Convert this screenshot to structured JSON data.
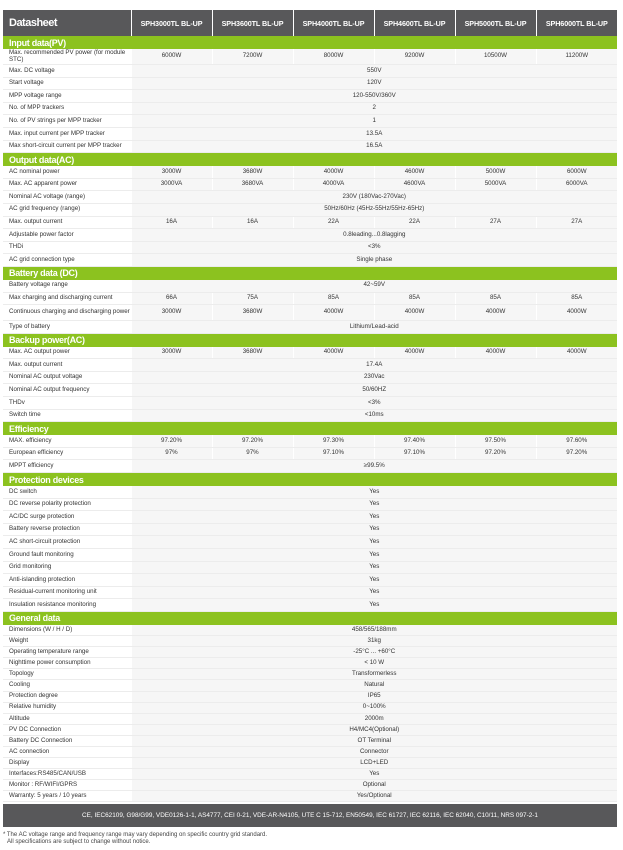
{
  "title": "Datasheet",
  "models": [
    "SPH3000TL BL-UP",
    "SPH3600TL BL-UP",
    "SPH4000TL BL-UP",
    "SPH4600TL BL-UP",
    "SPH5000TL BL-UP",
    "SPH6000TL BL-UP"
  ],
  "colors": {
    "header": "#58585a",
    "section": "#8cc21f"
  },
  "sections": [
    {
      "title": "Input data(PV)",
      "rows": [
        {
          "label": "Max. recommended PV power (for module STC)",
          "values": [
            "6000W",
            "7200W",
            "8000W",
            "9200W",
            "10500W",
            "11200W"
          ],
          "double": true
        },
        {
          "label": "Max. DC voltage",
          "span": "550V"
        },
        {
          "label": "Start voltage",
          "span": "120V"
        },
        {
          "label": "MPP voltage range",
          "span": "120-550V/360V"
        },
        {
          "label": "No. of MPP trackers",
          "span": "2"
        },
        {
          "label": "No. of PV strings per MPP tracker",
          "span": "1"
        },
        {
          "label": "Max. input current per MPP tracker",
          "span": "13.5A"
        },
        {
          "label": "Max short-circuit current per MPP tracker",
          "span": "16.5A"
        }
      ]
    },
    {
      "title": "Output data(AC)",
      "rows": [
        {
          "label": "AC nominal power",
          "values": [
            "3000W",
            "3680W",
            "4000W",
            "4600W",
            "5000W",
            "6000W"
          ]
        },
        {
          "label": "Max. AC apparent power",
          "values": [
            "3000VA",
            "3680VA",
            "4000VA",
            "4600VA",
            "5000VA",
            "6000VA"
          ]
        },
        {
          "label": "Nominal AC voltage (range)",
          "span": "230V (180Vac-270Vac)"
        },
        {
          "label": "AC grid frequency (range)",
          "span": "50Hz/60Hz (45Hz-55Hz/55Hz-65Hz)"
        },
        {
          "label": "Max. output current",
          "values": [
            "16A",
            "16A",
            "22A",
            "22A",
            "27A",
            "27A"
          ]
        },
        {
          "label": "Adjustable power factor",
          "span": "0.8leading...0.8lagging"
        },
        {
          "label": "THDi",
          "span": "<3%"
        },
        {
          "label": "AC grid connection type",
          "span": "Single phase"
        }
      ]
    },
    {
      "title": "Battery data (DC)",
      "rows": [
        {
          "label": "Battery voltage range",
          "span": "42~59V"
        },
        {
          "label": "Max charging and discharging current",
          "values": [
            "66A",
            "75A",
            "85A",
            "85A",
            "85A",
            "85A"
          ]
        },
        {
          "label": "Continuous charging and discharging power",
          "values": [
            "3000W",
            "3680W",
            "4000W",
            "4000W",
            "4000W",
            "4000W"
          ],
          "double": true
        },
        {
          "label": "Type of battery",
          "span": "Lithium/Lead-acid"
        }
      ]
    },
    {
      "title": "Backup power(AC)",
      "rows": [
        {
          "label": "Max. AC output power",
          "values": [
            "3000W",
            "3680W",
            "4000W",
            "4000W",
            "4000W",
            "4000W"
          ]
        },
        {
          "label": "Max. output current",
          "span": "17.4A"
        },
        {
          "label": "Nominal AC output voltage",
          "span": "230Vac"
        },
        {
          "label": "Nominal AC output frequency",
          "span": "50/60HZ"
        },
        {
          "label": "THDv",
          "span": "<3%"
        },
        {
          "label": "Switch time",
          "span": "<10ms"
        }
      ]
    },
    {
      "title": "Efficiency",
      "rows": [
        {
          "label": "MAX. efficiency",
          "values": [
            "97.20%",
            "97.20%",
            "97.30%",
            "97.40%",
            "97.50%",
            "97.60%"
          ]
        },
        {
          "label": "European efficiency",
          "values": [
            "97%",
            "97%",
            "97.10%",
            "97.10%",
            "97.20%",
            "97.20%"
          ]
        },
        {
          "label": "MPPT efficiency",
          "span": "≥99.5%"
        }
      ]
    },
    {
      "title": "Protection devices",
      "rows": [
        {
          "label": "DC switch",
          "span": "Yes"
        },
        {
          "label": "DC reverse polarity protection",
          "span": "Yes"
        },
        {
          "label": "AC/DC surge protection",
          "span": "Yes"
        },
        {
          "label": "Battery reverse protection",
          "span": "Yes"
        },
        {
          "label": "AC short-circuit protection",
          "span": "Yes"
        },
        {
          "label": "Ground fault monitoring",
          "span": "Yes"
        },
        {
          "label": "Grid monitoring",
          "span": "Yes"
        },
        {
          "label": "Anti-islanding protection",
          "span": "Yes"
        },
        {
          "label": "Residual-current monitoring unit",
          "span": "Yes"
        },
        {
          "label": "Insulation resistance monitoring",
          "span": "Yes"
        }
      ]
    },
    {
      "title": "General data",
      "general": true,
      "rows": [
        {
          "label": "Dimensions (W / H / D)",
          "span": "458/565/188mm"
        },
        {
          "label": "Weight",
          "span": "31kg"
        },
        {
          "label": "Operating temperature range",
          "span": "-25°C ... +60°C"
        },
        {
          "label": "Nighttime power consumption",
          "span": "< 10 W"
        },
        {
          "label": "Topology",
          "span": "Transformerless"
        },
        {
          "label": "Cooling",
          "span": "Natural"
        },
        {
          "label": "Protection degree",
          "span": "IP65"
        },
        {
          "label": "Relative humidity",
          "span": "0~100%"
        },
        {
          "label": "Altitude",
          "span": "2000m"
        },
        {
          "label": "PV DC Connection",
          "span": "H4/MC4(Optional)"
        },
        {
          "label": "Battery DC Connection",
          "span": "OT Terminal"
        },
        {
          "label": "AC connection",
          "span": "Connector"
        },
        {
          "label": "Display",
          "span": "LCD+LED"
        },
        {
          "label": "Interfaces:RS485/CAN/USB",
          "span": "Yes"
        },
        {
          "label": "Monitor : RF/WIFI/GPRS",
          "span": "Optional"
        },
        {
          "label": "Warranty: 5 years / 10 years",
          "span": "Yes/Optional"
        }
      ]
    }
  ],
  "certifications": "CE, IEC62109, G98/G99, VDE0126-1-1, AS4777, CEI 0-21, VDE-AR-N4105, UTE C 15-712, EN50549, IEC 61727, IEC 62116, IEC 62040, C10/11, NRS 097-2-1",
  "footnotes": [
    "* The AC voltage range and frequency range may vary depending on specific country grid standard.",
    "All specifications are subject to change without notice."
  ]
}
